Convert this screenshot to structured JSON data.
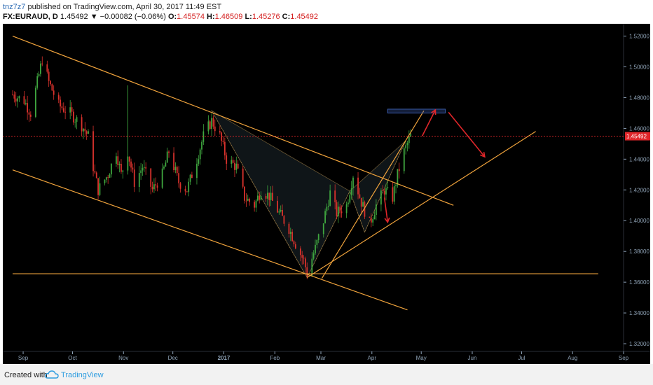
{
  "header": {
    "user": "tnz7z7",
    "published_text": " published on TradingView.com, April 30, 2017 11:49 EST",
    "symbol": "FX:EURAUD, D",
    "last": "1.45492",
    "change": "▼ −0.00082 (−0.06%)",
    "o_label": "O:",
    "o": "1.45574",
    "h_label": "H:",
    "h": "1.46509",
    "l_label": "L:",
    "l": "1.45276",
    "c_label": "C:",
    "c": "1.45492"
  },
  "footer": {
    "created": "Created with",
    "brand": "TradingView"
  },
  "colors": {
    "background": "#000000",
    "up": "#3fa63f",
    "down": "#d9322c",
    "drawing": "#f0a33c",
    "arrow": "#e0262a",
    "target_box": "#3a5aa8",
    "axis_text": "#8fa3b7",
    "price_tag": "#e0262a"
  },
  "chart_data": {
    "type": "candlestick",
    "symbol": "FX:EURAUD",
    "interval": "D",
    "x_ticks": [
      "Sep",
      "Oct",
      "Nov",
      "Dec",
      "2017",
      "Feb",
      "Mar",
      "Apr",
      "May",
      "Jun",
      "Jul",
      "Aug",
      "Sep"
    ],
    "y_ticks": [
      "1.52000",
      "1.50000",
      "1.48000",
      "1.46000",
      "1.44000",
      "1.42000",
      "1.40000",
      "1.38000",
      "1.36000",
      "1.34000",
      "1.32000"
    ],
    "ylim": [
      1.315,
      1.528
    ],
    "last_price": 1.45492,
    "last_price_label": "1.45492",
    "price_path": [
      [
        "2016-08-29",
        1.482
      ],
      [
        "2016-09-05",
        1.478
      ],
      [
        "2016-09-09",
        1.47
      ],
      [
        "2016-09-14",
        1.495
      ],
      [
        "2016-09-16",
        1.505
      ],
      [
        "2016-09-20",
        1.49
      ],
      [
        "2016-09-26",
        1.475
      ],
      [
        "2016-10-03",
        1.47
      ],
      [
        "2016-10-10",
        1.462
      ],
      [
        "2016-10-14",
        1.455
      ],
      [
        "2016-10-17",
        1.435
      ],
      [
        "2016-10-20",
        1.42
      ],
      [
        "2016-10-26",
        1.43
      ],
      [
        "2016-10-31",
        1.445
      ],
      [
        "2016-11-03",
        1.43
      ],
      [
        "2016-11-07",
        1.445
      ],
      [
        "2016-11-11",
        1.425
      ],
      [
        "2016-11-16",
        1.435
      ],
      [
        "2016-11-22",
        1.42
      ],
      [
        "2016-11-28",
        1.43
      ],
      [
        "2016-12-02",
        1.445
      ],
      [
        "2016-12-08",
        1.425
      ],
      [
        "2016-12-13",
        1.42
      ],
      [
        "2016-12-19",
        1.44
      ],
      [
        "2016-12-23",
        1.455
      ],
      [
        "2016-12-28",
        1.465
      ],
      [
        "2017-01-02",
        1.455
      ],
      [
        "2017-01-06",
        1.44
      ],
      [
        "2017-01-12",
        1.435
      ],
      [
        "2017-01-17",
        1.415
      ],
      [
        "2017-01-23",
        1.41
      ],
      [
        "2017-01-27",
        1.42
      ],
      [
        "2017-02-01",
        1.416
      ],
      [
        "2017-02-07",
        1.405
      ],
      [
        "2017-02-13",
        1.395
      ],
      [
        "2017-02-17",
        1.385
      ],
      [
        "2017-02-22",
        1.374
      ],
      [
        "2017-02-24",
        1.366
      ],
      [
        "2017-03-01",
        1.382
      ],
      [
        "2017-03-06",
        1.4
      ],
      [
        "2017-03-10",
        1.418
      ],
      [
        "2017-03-14",
        1.405
      ],
      [
        "2017-03-20",
        1.41
      ],
      [
        "2017-03-24",
        1.43
      ],
      [
        "2017-03-29",
        1.412
      ],
      [
        "2017-04-03",
        1.398
      ],
      [
        "2017-04-07",
        1.41
      ],
      [
        "2017-04-12",
        1.42
      ],
      [
        "2017-04-17",
        1.415
      ],
      [
        "2017-04-20",
        1.43
      ],
      [
        "2017-04-24",
        1.445
      ],
      [
        "2017-04-28",
        1.455
      ]
    ],
    "drawings": {
      "upper_channel_line": [
        [
          "2016-08-29",
          1.52
        ],
        [
          "2017-05-24",
          1.41
        ]
      ],
      "lower_channel_line": [
        [
          "2016-08-29",
          1.433
        ],
        [
          "2017-04-26",
          1.342
        ]
      ],
      "horizontal_support": [
        [
          "2016-08-29",
          1.3655
        ],
        [
          "2017-08-20",
          1.3655
        ]
      ],
      "rising_trendline": [
        [
          "2017-02-24",
          1.363
        ],
        [
          "2017-07-13",
          1.458
        ]
      ],
      "steep_trendline": [
        [
          "2017-03-05",
          1.3625
        ],
        [
          "2017-05-06",
          1.4715
        ]
      ],
      "harmonic_points": [
        [
          "2016-12-28",
          1.4715
        ],
        [
          "2017-02-24",
          1.363
        ],
        [
          "2017-03-22",
          1.4192
        ],
        [
          "2017-03-31",
          1.3925
        ],
        [
          "2017-04-25",
          1.452
        ]
      ],
      "target_zone": [
        [
          "2017-04-14",
          1.4725
        ],
        [
          "2017-05-19",
          1.47
        ]
      ],
      "arrows": [
        [
          [
            "2017-05-05",
            1.455
          ],
          [
            "2017-05-13",
            1.472
          ]
        ],
        [
          [
            "2017-05-21",
            1.4705
          ],
          [
            "2017-06-12",
            1.4415
          ]
        ],
        [
          [
            "2017-04-12",
            1.415
          ],
          [
            "2017-04-14",
            1.399
          ]
        ]
      ]
    }
  }
}
